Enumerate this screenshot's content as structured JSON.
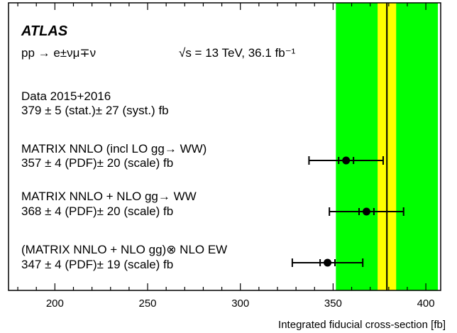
{
  "chart_data": {
    "type": "scatter",
    "title": "",
    "experiment": "ATLAS",
    "process": "pp → e±νμ∓ν",
    "energy": "√s = 13 TeV, 36.1 fb⁻¹",
    "xlabel": "Integrated fiducial cross-section [fb]",
    "ylabel": "",
    "xlim": [
      175,
      408
    ],
    "xticks": [
      200,
      250,
      300,
      350,
      400
    ],
    "grid": false,
    "measurement": {
      "name": "Data 2015+2016",
      "label": "379 ± 5 (stat.)± 27 (syst.) fb",
      "value": 379,
      "stat": 5,
      "syst": 27,
      "total": 27.5,
      "colors": {
        "total_band": "#00ff00",
        "stat_band": "#ffff00",
        "line": "#000000"
      }
    },
    "predictions": [
      {
        "name": "MATRIX NNLO (incl LO gg→ WW)",
        "label": "357 ± 4 (PDF)± 20 (scale) fb",
        "value": 357,
        "pdf": 4,
        "scale": 20
      },
      {
        "name": "MATRIX NNLO + NLO gg→ WW",
        "label": "368 ± 4 (PDF)± 20 (scale) fb",
        "value": 368,
        "pdf": 4,
        "scale": 20
      },
      {
        "name": "(MATRIX NNLO + NLO gg)⊗ NLO EW",
        "label": "347 ± 4 (PDF)± 19 (scale) fb",
        "value": 347,
        "pdf": 4,
        "scale": 19
      }
    ]
  }
}
